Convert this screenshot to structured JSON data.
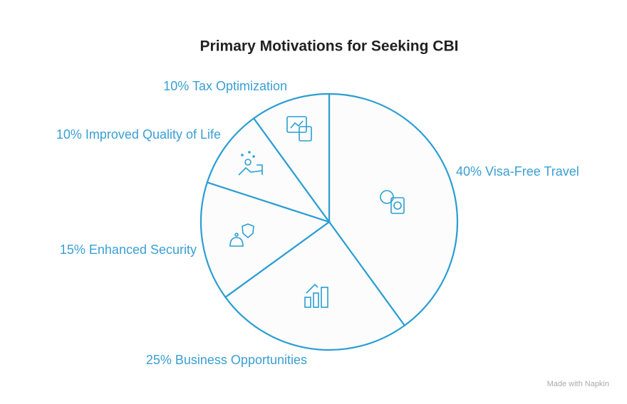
{
  "chart_data": {
    "type": "pie",
    "title": "Primary Motivations for Seeking CBI",
    "categories": [
      "Visa-Free Travel",
      "Business Opportunities",
      "Enhanced Security",
      "Improved Quality of Life",
      "Tax Optimization"
    ],
    "values": [
      40,
      25,
      15,
      10,
      10
    ],
    "value_labels": [
      "40%",
      "25%",
      "15%",
      "10%",
      "10%"
    ],
    "color": "#2b9ed3",
    "watermark": "Made with Napkin"
  }
}
